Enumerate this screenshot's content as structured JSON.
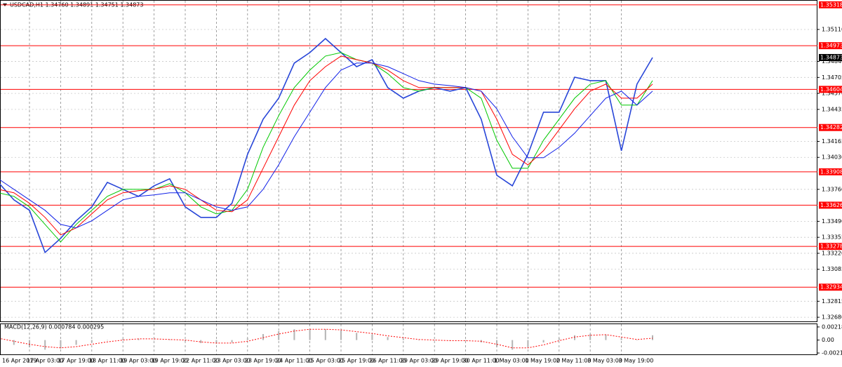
{
  "chart_data": [
    {
      "type": "line",
      "title": "USDCAD,H1 1.34760 1.34891 1.34751 1.34873",
      "categories": [
        "16 Apr 2019",
        null,
        "17 Apr 03:00",
        null,
        "17 Apr 19:00",
        null,
        "18 Apr 11:00",
        null,
        "19 Apr 03:00",
        null,
        "19 Apr 19:00",
        null,
        "22 Apr 11:00",
        null,
        "23 Apr 03:00",
        null,
        "23 Apr 19:00",
        null,
        "24 Apr 11:00",
        null,
        "25 Apr 03:00",
        null,
        "25 Apr 19:00",
        null,
        "26 Apr 11:00",
        null,
        "29 Apr 03:00",
        null,
        "29 Apr 19:00",
        null,
        "30 Apr 11:00",
        null,
        "1 May 03:00",
        null,
        "1 May 19:00",
        null,
        "2 May 11:00",
        null,
        "3 May 03:00",
        null,
        "3 May 19:00",
        null,
        null
      ],
      "series": [
        {
          "color": "#2846d8",
          "values": [
            1.33819,
            1.33671,
            1.33583,
            1.33227,
            1.33346,
            1.33494,
            1.33612,
            1.33819,
            1.3376,
            1.33701,
            1.3379,
            1.33849,
            1.33612,
            1.33523,
            1.33523,
            1.33642,
            1.34056,
            1.34352,
            1.3453,
            1.34826,
            1.34915,
            1.35033,
            1.34915,
            1.34796,
            1.34855,
            1.34619,
            1.3453,
            1.34589,
            1.34619,
            1.34589,
            1.34619,
            1.34352,
            1.33879,
            1.3379,
            1.34056,
            1.34411,
            1.34411,
            1.34707,
            1.34678,
            1.34678,
            1.34086,
            1.34648,
            1.34873
          ]
        },
        {
          "color": "#00c800",
          "values": [
            1.33731,
            1.33701,
            1.33612,
            1.33464,
            1.33316,
            1.33464,
            1.33583,
            1.33701,
            1.3376,
            1.3376,
            1.3376,
            1.33808,
            1.33731,
            1.33612,
            1.33553,
            1.33583,
            1.3376,
            1.34115,
            1.34382,
            1.34619,
            1.34767,
            1.34885,
            1.34915,
            1.34855,
            1.34826,
            1.34737,
            1.34619,
            1.34589,
            1.34619,
            1.34619,
            1.34619,
            1.3453,
            1.34175,
            1.33938,
            1.33938,
            1.34175,
            1.34352,
            1.3453,
            1.34648,
            1.34678,
            1.34471,
            1.34471,
            1.34678
          ]
        },
        {
          "color": "#ff0000",
          "values": [
            1.3376,
            1.33731,
            1.33642,
            1.33523,
            1.33375,
            1.33435,
            1.33553,
            1.33671,
            1.33731,
            1.33748,
            1.3376,
            1.3379,
            1.3376,
            1.33671,
            1.33583,
            1.33571,
            1.33671,
            1.33938,
            1.34204,
            1.34471,
            1.34678,
            1.34796,
            1.34885,
            1.34855,
            1.34826,
            1.34767,
            1.34678,
            1.34619,
            1.34619,
            1.34619,
            1.34619,
            1.34589,
            1.34352,
            1.34056,
            1.33967,
            1.34086,
            1.34263,
            1.34441,
            1.34589,
            1.34648,
            1.3453,
            1.3453,
            1.34648
          ]
        },
        {
          "color": "#1020e8",
          "values": [
            1.33849,
            1.3376,
            1.33671,
            1.33583,
            1.33464,
            1.33435,
            1.33494,
            1.33583,
            1.33671,
            1.33701,
            1.33713,
            1.33731,
            1.33731,
            1.33671,
            1.33612,
            1.33583,
            1.33612,
            1.3376,
            1.33967,
            1.34204,
            1.34411,
            1.34619,
            1.34767,
            1.34826,
            1.34826,
            1.34796,
            1.34737,
            1.34678,
            1.34648,
            1.34636,
            1.34619,
            1.34589,
            1.34441,
            1.34204,
            1.34027,
            1.34027,
            1.34115,
            1.34234,
            1.34382,
            1.3453,
            1.34589,
            1.34471,
            1.34589
          ]
        }
      ],
      "ylim": [
        1.32645,
        1.35335
      ],
      "yticks": [
        {
          "value": 1.3511,
          "label": "1.35110"
        },
        {
          "value": 1.3484,
          "label": "1.34840"
        },
        1.34705,
        {
          "value": 1.3457,
          "label": "1.34570"
        },
        1.34435,
        1.34165,
        {
          "value": 1.3403,
          "label": "1.34030"
        },
        {
          "value": 1.3376,
          "label": "1.33760"
        },
        {
          "value": 1.3349,
          "label": "1.33490"
        },
        1.33355,
        {
          "value": 1.3322,
          "label": "1.33220"
        },
        1.33085,
        1.32815,
        {
          "value": 1.3268,
          "label": "1.32680"
        }
      ],
      "levels": [
        1.35318,
        1.34973,
        1.34604,
        1.34282,
        1.33908,
        1.33626,
        1.33278,
        1.32934
      ],
      "level_color": "#ff0000",
      "current_price": 1.34873,
      "grid": true
    },
    {
      "type": "bar",
      "title": "MACD(12,26,9) 0.000784 0.000295",
      "values": [
        -0.0004,
        -0.0008,
        -0.0012,
        -0.0016,
        -0.0014,
        -0.0008,
        -0.0004,
        0.0,
        0.0002,
        0.0002,
        0.0001,
        0.0001,
        -0.0002,
        -0.0005,
        -0.0006,
        -0.0004,
        0.0003,
        0.001,
        0.0015,
        0.0018,
        0.0019,
        0.0018,
        0.0016,
        0.0012,
        0.0009,
        0.0005,
        0.0002,
        0.0,
        -0.0001,
        -0.0001,
        -0.0001,
        -0.0004,
        -0.0012,
        -0.0016,
        -0.0012,
        -0.0004,
        0.0003,
        0.0008,
        0.001,
        0.0009,
        0.0003,
        0.0,
        0.0008
      ],
      "color": "#b4b4b4",
      "signal": [
        0.0003,
        -0.0002,
        -0.0007,
        -0.0011,
        -0.0013,
        -0.0011,
        -0.0007,
        -0.0003,
        0.0,
        0.0002,
        0.0002,
        0.0001,
        0.0,
        -0.0003,
        -0.0005,
        -0.0005,
        -0.0002,
        0.0004,
        0.001,
        0.0015,
        0.0018,
        0.0018,
        0.0017,
        0.0014,
        0.0011,
        0.0007,
        0.0004,
        0.0001,
        0.0,
        -0.0001,
        -0.0001,
        -0.0002,
        -0.0007,
        -0.0013,
        -0.0013,
        -0.0008,
        -0.0001,
        0.0005,
        0.0008,
        0.0009,
        0.0005,
        0.0001,
        0.0003
      ],
      "signal_color": "#ff0000",
      "ylim": [
        -0.00238,
        0.00264
      ],
      "yticks": [
        0.002181,
        {
          "value": 0,
          "label": "0.00"
        },
        -0.002154
      ]
    }
  ]
}
